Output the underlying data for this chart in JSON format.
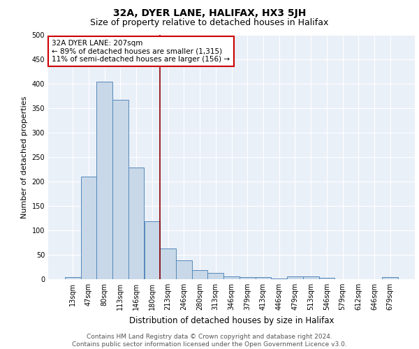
{
  "title": "32A, DYER LANE, HALIFAX, HX3 5JH",
  "subtitle": "Size of property relative to detached houses in Halifax",
  "xlabel": "Distribution of detached houses by size in Halifax",
  "ylabel": "Number of detached properties",
  "categories": [
    "13sqm",
    "47sqm",
    "80sqm",
    "113sqm",
    "146sqm",
    "180sqm",
    "213sqm",
    "246sqm",
    "280sqm",
    "313sqm",
    "346sqm",
    "379sqm",
    "413sqm",
    "446sqm",
    "479sqm",
    "513sqm",
    "546sqm",
    "579sqm",
    "612sqm",
    "646sqm",
    "679sqm"
  ],
  "values": [
    5,
    210,
    405,
    367,
    228,
    118,
    63,
    38,
    18,
    13,
    6,
    5,
    5,
    1,
    6,
    6,
    3,
    0,
    0,
    0,
    4
  ],
  "bar_color": "#c8d8e8",
  "bar_edge_color": "#5588bb",
  "vline_color": "#8b0000",
  "annotation_text": "32A DYER LANE: 207sqm\n← 89% of detached houses are smaller (1,315)\n11% of semi-detached houses are larger (156) →",
  "annotation_box_edge_color": "#cc0000",
  "ylim": [
    0,
    500
  ],
  "yticks": [
    0,
    50,
    100,
    150,
    200,
    250,
    300,
    350,
    400,
    450,
    500
  ],
  "background_color": "#eaf0f8",
  "footer_text": "Contains HM Land Registry data © Crown copyright and database right 2024.\nContains public sector information licensed under the Open Government Licence v3.0.",
  "title_fontsize": 10,
  "subtitle_fontsize": 9,
  "xlabel_fontsize": 8.5,
  "ylabel_fontsize": 8,
  "tick_fontsize": 7,
  "annotation_fontsize": 7.5,
  "footer_fontsize": 6.5
}
